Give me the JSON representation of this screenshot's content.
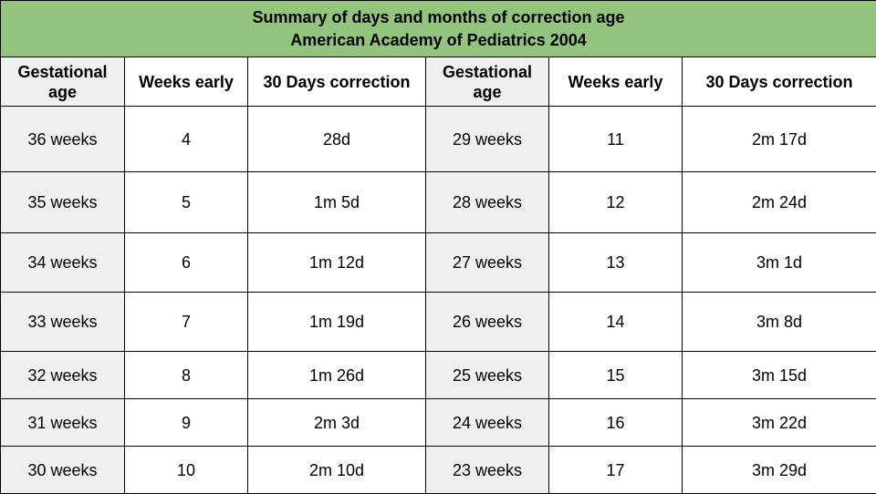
{
  "title": {
    "line1": "Summary of days and months of correction age",
    "line2": "American Academy of Pediatrics 2004"
  },
  "headers": [
    "Gestational age",
    "Weeks early",
    "30 Days correction",
    "Gestational age",
    "Weeks early",
    "30 Days correction"
  ],
  "rows": [
    [
      "36 weeks",
      "4",
      "28d",
      "29 weeks",
      "11",
      "2m 17d"
    ],
    [
      "35 weeks",
      "5",
      "1m 5d",
      "28 weeks",
      "12",
      "2m 24d"
    ],
    [
      "34 weeks",
      "6",
      "1m 12d",
      "27 weeks",
      "13",
      "3m 1d"
    ],
    [
      "33 weeks",
      "7",
      "1m 19d",
      "26 weeks",
      "14",
      "3m 8d"
    ],
    [
      "32 weeks",
      "8",
      "1m 26d",
      "25 weeks",
      "15",
      "3m 15d"
    ],
    [
      "31 weeks",
      "9",
      "2m 3d",
      "24 weeks",
      "16",
      "3m 22d"
    ],
    [
      "30 weeks",
      "10",
      "2m 10d",
      "23 weeks",
      "17",
      "3m 29d"
    ]
  ],
  "colors": {
    "title_bg": "#93c47d",
    "shaded_bg": "#efefef",
    "border": "#000000"
  }
}
